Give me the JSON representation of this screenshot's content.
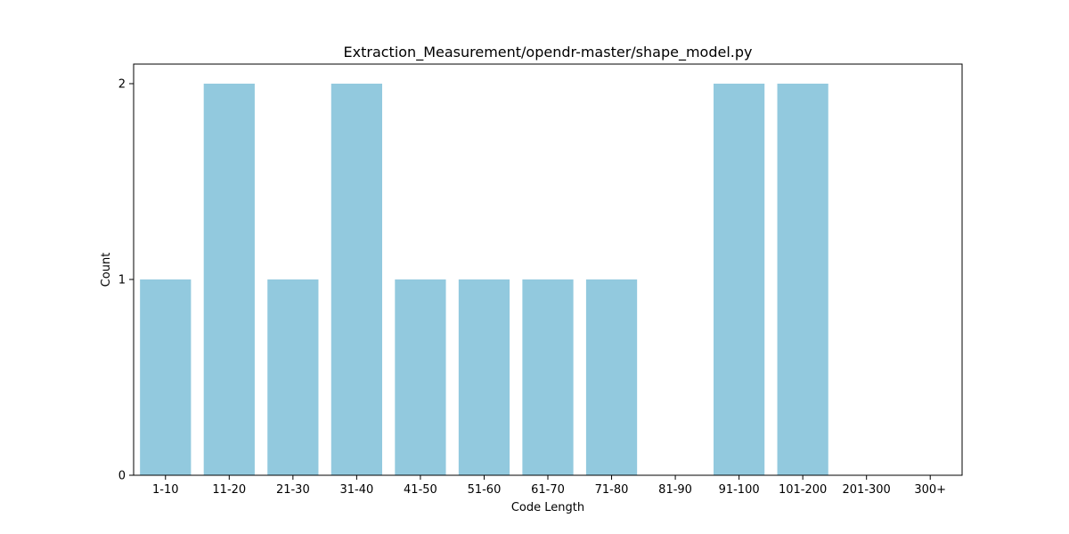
{
  "chart_data": {
    "type": "bar",
    "title": "Extraction_Measurement/opendr-master/shape_model.py",
    "xlabel": "Code Length",
    "ylabel": "Count",
    "categories": [
      "1-10",
      "11-20",
      "21-30",
      "31-40",
      "41-50",
      "51-60",
      "61-70",
      "71-80",
      "81-90",
      "91-100",
      "101-200",
      "201-300",
      "300+"
    ],
    "values": [
      1,
      2,
      1,
      2,
      1,
      1,
      1,
      1,
      0,
      2,
      2,
      0,
      0
    ],
    "ylim": [
      0,
      2.1
    ],
    "yticks": [
      0,
      1,
      2
    ],
    "grid": false,
    "bar_color": "#92c9de"
  }
}
